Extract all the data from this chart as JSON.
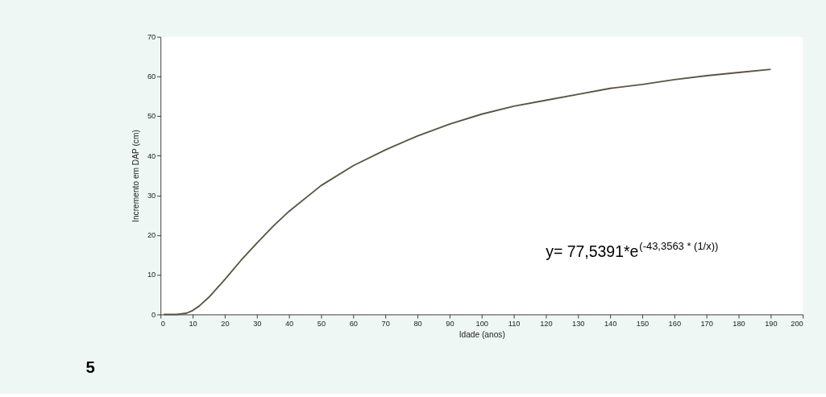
{
  "chart_data": {
    "type": "line",
    "xlabel": "Idade (anos)",
    "ylabel": "Incremento em DAP (cm)",
    "x": [
      1,
      5,
      8,
      10,
      12,
      15,
      20,
      25,
      30,
      35,
      40,
      50,
      60,
      70,
      80,
      90,
      100,
      110,
      120,
      130,
      140,
      150,
      160,
      170,
      180,
      190
    ],
    "series": [
      {
        "color": "#5b5442",
        "values": [
          0,
          0,
          0.3,
          1,
          2.1,
          4.3,
          8.8,
          13.6,
          18,
          22.2,
          26,
          32.5,
          37.5,
          41.5,
          45,
          48,
          50.5,
          52.5,
          54,
          55.5,
          57,
          58,
          59.2,
          60.2,
          61,
          61.8
        ]
      }
    ],
    "xlim": [
      0,
      200
    ],
    "xticks": [
      0,
      10,
      20,
      30,
      40,
      50,
      60,
      70,
      80,
      90,
      100,
      110,
      120,
      130,
      140,
      150,
      160,
      170,
      180,
      190,
      200
    ],
    "ylim": [
      0,
      70
    ],
    "yticks": [
      0,
      10,
      20,
      30,
      40,
      50,
      60,
      70
    ],
    "grid": false,
    "marker": "none",
    "line_style": "solid",
    "annotations": [
      "y= 77,5391*e$^{(-43,3563 * (1/x))}$",
      "5"
    ]
  }
}
